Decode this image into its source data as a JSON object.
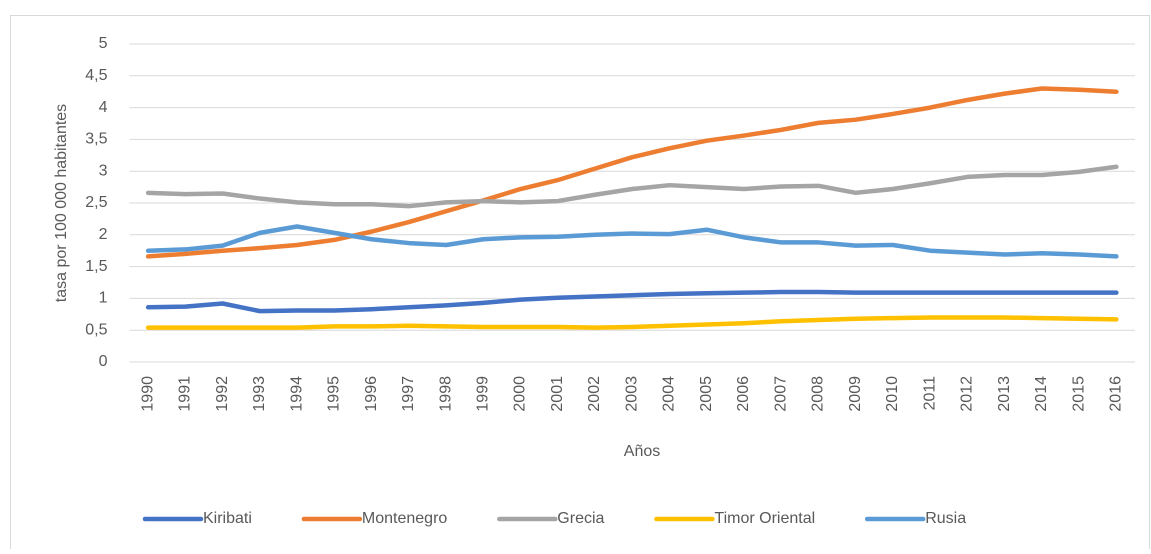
{
  "chart_data": {
    "type": "line",
    "y_label": "tasa por 100 000 habitantes",
    "x_label": "Años",
    "categories": [
      "1990",
      "1991",
      "1992",
      "1993",
      "1994",
      "1995",
      "1996",
      "1997",
      "1998",
      "1999",
      "2000",
      "2001",
      "2002",
      "2003",
      "2004",
      "2005",
      "2006",
      "2007",
      "2008",
      "2009",
      "2010",
      "2011",
      "2012",
      "2013",
      "2014",
      "2015",
      "2016"
    ],
    "series": [
      {
        "name": "Kiribati",
        "color": "#4472c4",
        "values": [
          0.86,
          0.87,
          0.92,
          0.8,
          0.81,
          0.81,
          0.83,
          0.86,
          0.89,
          0.93,
          0.98,
          1.01,
          1.03,
          1.05,
          1.07,
          1.08,
          1.09,
          1.1,
          1.1,
          1.09,
          1.09,
          1.09,
          1.09,
          1.09,
          1.09,
          1.09,
          1.09
        ]
      },
      {
        "name": "Montenegro",
        "color": "#ed7d31",
        "values": [
          1.66,
          1.7,
          1.75,
          1.79,
          1.84,
          1.92,
          2.05,
          2.2,
          2.37,
          2.54,
          2.72,
          2.86,
          3.04,
          3.22,
          3.36,
          3.48,
          3.56,
          3.65,
          3.76,
          3.81,
          3.9,
          4.0,
          4.12,
          4.22,
          4.3,
          4.28,
          4.25
        ]
      },
      {
        "name": "Grecia",
        "color": "#a5a5a5",
        "values": [
          2.66,
          2.64,
          2.65,
          2.57,
          2.51,
          2.48,
          2.48,
          2.45,
          2.51,
          2.53,
          2.51,
          2.53,
          2.63,
          2.72,
          2.78,
          2.75,
          2.72,
          2.76,
          2.77,
          2.66,
          2.72,
          2.81,
          2.91,
          2.94,
          2.94,
          2.99,
          3.07
        ]
      },
      {
        "name": "Timor Oriental",
        "color": "#ffc000",
        "values": [
          0.54,
          0.54,
          0.54,
          0.54,
          0.54,
          0.56,
          0.56,
          0.57,
          0.56,
          0.55,
          0.55,
          0.55,
          0.54,
          0.55,
          0.57,
          0.59,
          0.61,
          0.64,
          0.66,
          0.68,
          0.69,
          0.7,
          0.7,
          0.7,
          0.69,
          0.68,
          0.67
        ]
      },
      {
        "name": "Rusia",
        "color": "#5b9bd5",
        "values": [
          1.75,
          1.77,
          1.83,
          2.03,
          2.13,
          2.03,
          1.93,
          1.87,
          1.84,
          1.93,
          1.96,
          1.97,
          2.0,
          2.02,
          2.01,
          2.08,
          1.96,
          1.88,
          1.88,
          1.83,
          1.84,
          1.75,
          1.72,
          1.69,
          1.71,
          1.69,
          1.66
        ]
      }
    ],
    "ylim": [
      0,
      5
    ],
    "yticks": [
      0,
      {
        "value": 0.5,
        "label": "0,5"
      },
      1,
      {
        "value": 1.5,
        "label": "1,5"
      },
      2,
      {
        "value": 2.5,
        "label": "2,5"
      },
      3,
      {
        "value": 3.5,
        "label": "3,5"
      },
      4,
      {
        "value": 4.5,
        "label": "4,5"
      },
      5
    ],
    "grid": true,
    "legend": "bottom"
  }
}
